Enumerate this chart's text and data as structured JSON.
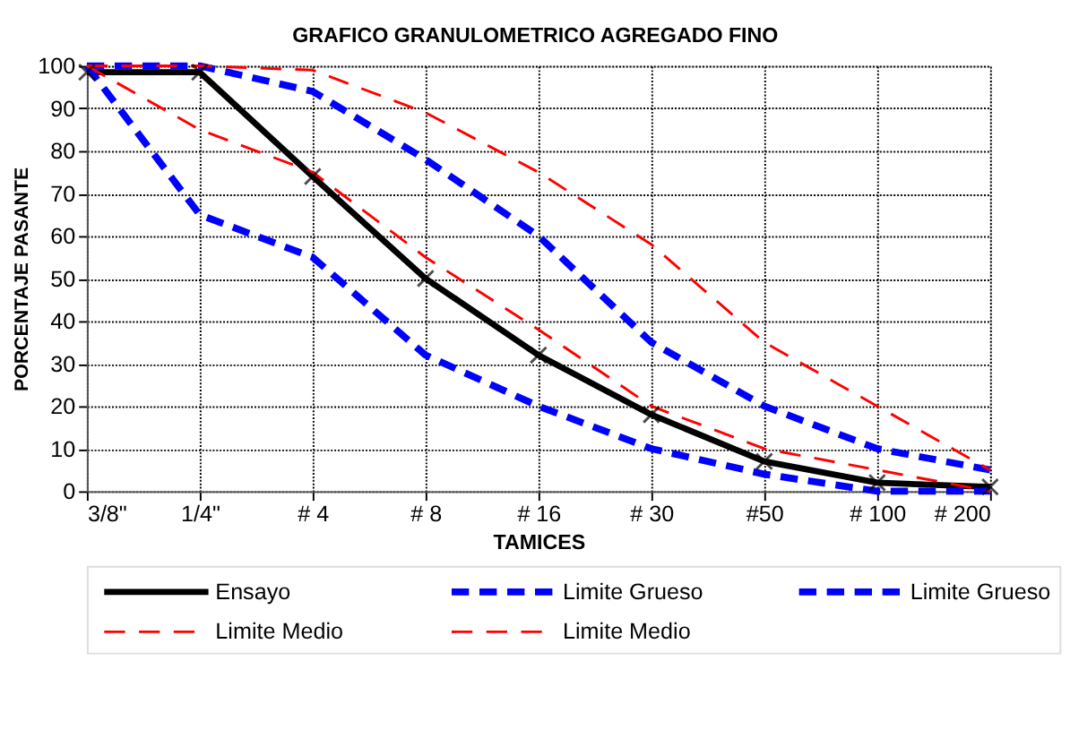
{
  "chart_data": {
    "type": "line",
    "title": "GRAFICO GRANULOMETRICO AGREGADO FINO",
    "xlabel": "TAMICES",
    "ylabel": "PORCENTAJE PASANTE",
    "categories": [
      "3/8\"",
      "1/4\"",
      "# 4",
      "# 8",
      "# 16",
      "# 30",
      "#50",
      "# 100",
      "# 200"
    ],
    "series": [
      {
        "name": "Ensayo",
        "color": "#000000",
        "line_style": "solid",
        "marker": "cross",
        "values": [
          98.5,
          98.5,
          74,
          50,
          32,
          18,
          7,
          2,
          1
        ]
      },
      {
        "name": "Limite Grueso",
        "color": "#0000ff",
        "line_style": "dashed",
        "values": [
          100,
          100,
          94,
          78,
          60,
          35,
          20,
          10,
          5
        ]
      },
      {
        "name": "Limite Grueso",
        "color": "#0000ff",
        "line_style": "dashed",
        "values": [
          100,
          65,
          55,
          32,
          20,
          10,
          4,
          0,
          0
        ]
      },
      {
        "name": "Limite Medio",
        "color": "#ff0000",
        "line_style": "dashed",
        "values": [
          100,
          100,
          99,
          89,
          75,
          58,
          35,
          20,
          5
        ]
      },
      {
        "name": "Limite Medio",
        "color": "#ff0000",
        "line_style": "dashed",
        "values": [
          100,
          85,
          75,
          55,
          38,
          20,
          10,
          5,
          0
        ]
      }
    ],
    "ylim": [
      0,
      100
    ],
    "yticks": [
      0,
      10,
      20,
      30,
      40,
      50,
      60,
      70,
      80,
      90,
      100
    ],
    "grid": true,
    "legend": "bottom"
  }
}
